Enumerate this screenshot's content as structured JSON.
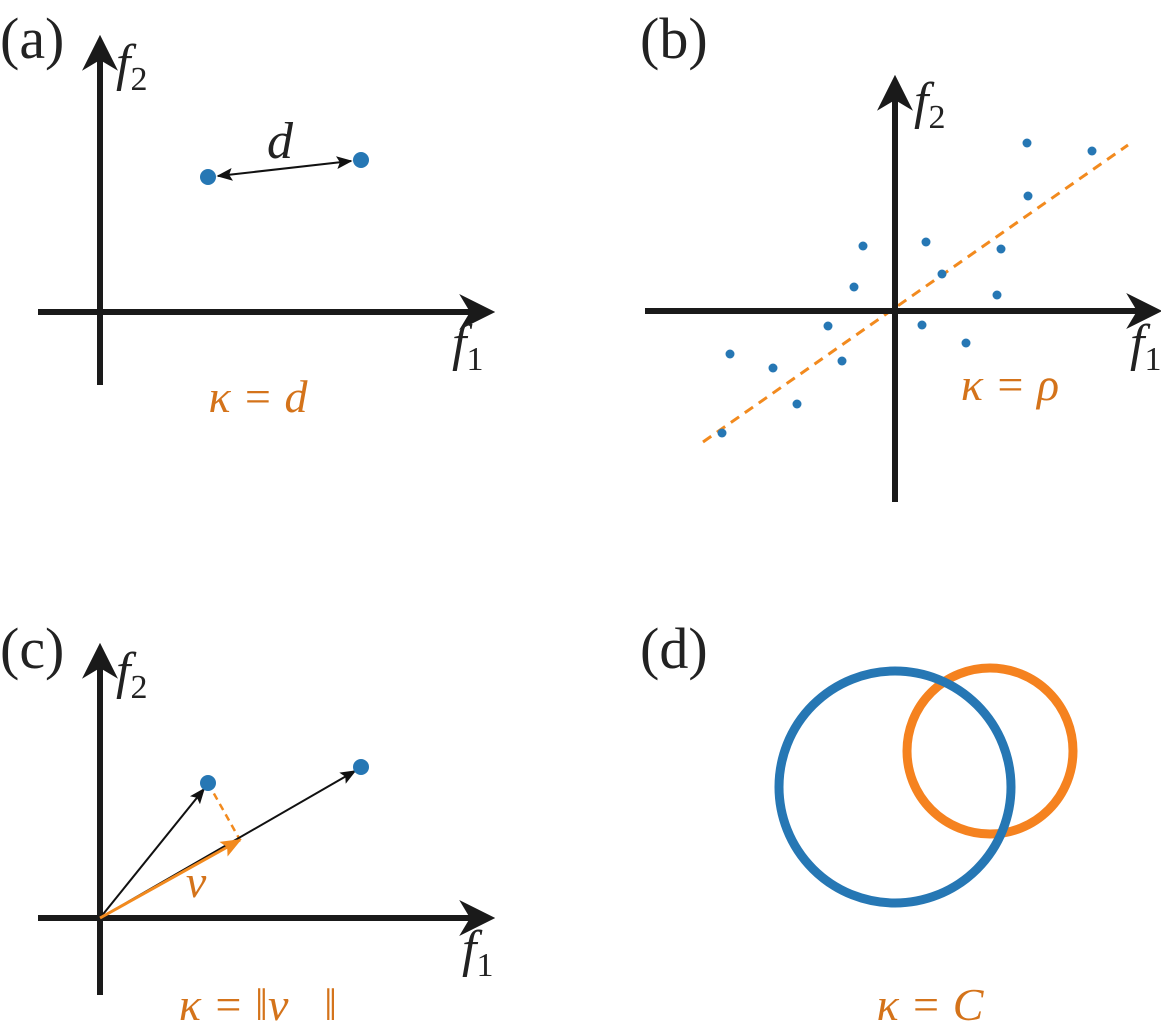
{
  "panels": [
    {
      "label": "(a)",
      "x_axis": {
        "symbol": "f",
        "subscript": "1"
      },
      "y_axis": {
        "symbol": "f",
        "subscript": "2"
      },
      "annotation": "d",
      "formula": "κ = d"
    },
    {
      "label": "(b)",
      "x_axis": {
        "symbol": "f",
        "subscript": "1"
      },
      "y_axis": {
        "symbol": "f",
        "subscript": "2"
      },
      "formula": "κ = ρ"
    },
    {
      "label": "(c)",
      "x_axis": {
        "symbol": "f",
        "subscript": "1"
      },
      "y_axis": {
        "symbol": "f",
        "subscript": "2"
      },
      "annotation": "v⃗",
      "formula": "κ = ‖v⃗‖"
    },
    {
      "label": "(d)",
      "formula": "κ = C"
    }
  ]
}
